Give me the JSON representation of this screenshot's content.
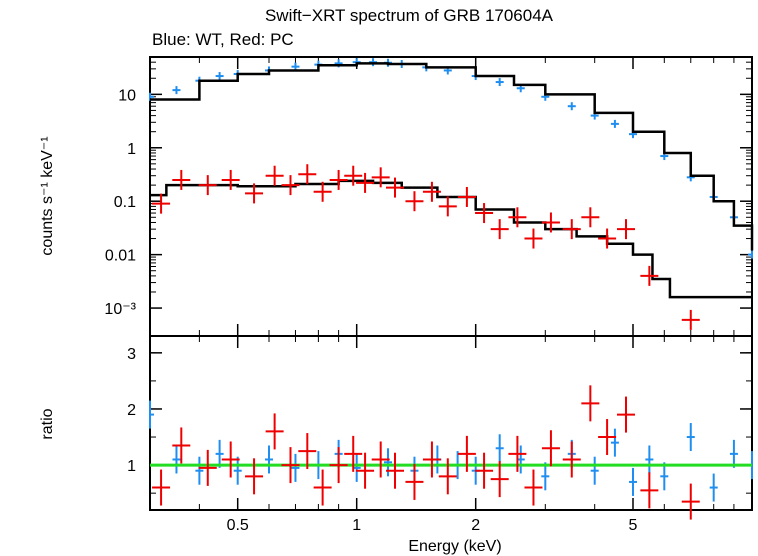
{
  "chart_data": [
    {
      "type": "scatter",
      "title": "Swift−XRT spectrum of GRB 170604A",
      "subtitle": "Blue: WT, Red: PC",
      "xlabel": "",
      "ylabel": "counts s⁻¹ keV⁻¹",
      "xscale": "log",
      "yscale": "log",
      "xlim": [
        0.3,
        10
      ],
      "ylim": [
        0.0003,
        50
      ],
      "y_tick_labels": [
        "10⁻³",
        "0.01",
        "0.1",
        "1",
        "10"
      ],
      "y_tick_values": [
        0.001,
        0.01,
        0.1,
        1,
        10
      ],
      "colors": {
        "wt": "#1f8ef1",
        "pc": "#ee0000",
        "model": "#000000"
      },
      "series": [
        {
          "name": "WT",
          "x": [
            0.3,
            0.35,
            0.4,
            0.45,
            0.5,
            0.6,
            0.7,
            0.8,
            0.9,
            1.0,
            1.1,
            1.2,
            1.3,
            1.5,
            1.7,
            2.0,
            2.3,
            2.6,
            3.0,
            3.5,
            4.0,
            4.5,
            5.0,
            6.0,
            7.0,
            8.0,
            9.0,
            10.0
          ],
          "y": [
            9.0,
            12.0,
            18.0,
            22.0,
            24.0,
            28.0,
            33.0,
            36.0,
            38.0,
            40.0,
            40.0,
            39.0,
            37.0,
            32.0,
            28.0,
            22.0,
            17.0,
            13.0,
            9.0,
            6.0,
            4.0,
            2.8,
            1.8,
            0.7,
            0.28,
            0.12,
            0.05,
            0.01
          ]
        },
        {
          "name": "PC",
          "x": [
            0.32,
            0.36,
            0.42,
            0.48,
            0.55,
            0.62,
            0.68,
            0.75,
            0.82,
            0.9,
            0.98,
            1.05,
            1.15,
            1.25,
            1.4,
            1.55,
            1.7,
            1.9,
            2.1,
            2.3,
            2.55,
            2.8,
            3.1,
            3.5,
            3.9,
            4.3,
            4.8,
            5.5,
            7.0
          ],
          "y": [
            0.09,
            0.25,
            0.2,
            0.25,
            0.14,
            0.3,
            0.2,
            0.32,
            0.15,
            0.25,
            0.3,
            0.22,
            0.28,
            0.18,
            0.1,
            0.15,
            0.08,
            0.12,
            0.06,
            0.03,
            0.05,
            0.02,
            0.04,
            0.03,
            0.05,
            0.02,
            0.03,
            0.004,
            0.0006
          ]
        },
        {
          "name": "WT model",
          "x": [
            0.3,
            0.4,
            0.5,
            0.6,
            0.8,
            1.0,
            1.2,
            1.5,
            2.0,
            2.5,
            3.0,
            4.0,
            5.0,
            6.0,
            7.0,
            8.0,
            9.0,
            10.0
          ],
          "y": [
            8.0,
            18.0,
            24.0,
            28.0,
            35.0,
            38.0,
            37.0,
            32.0,
            22.0,
            15.0,
            10.0,
            4.5,
            2.0,
            0.8,
            0.3,
            0.1,
            0.035,
            0.012
          ]
        },
        {
          "name": "PC model",
          "x": [
            0.3,
            0.33,
            0.4,
            0.5,
            0.7,
            0.9,
            1.0,
            1.1,
            1.3,
            1.6,
            2.0,
            2.5,
            3.0,
            3.6,
            4.3,
            5.0,
            5.6,
            6.2,
            10.0
          ],
          "y": [
            0.13,
            0.2,
            0.2,
            0.19,
            0.21,
            0.24,
            0.24,
            0.22,
            0.18,
            0.12,
            0.07,
            0.04,
            0.03,
            0.022,
            0.016,
            0.01,
            0.0035,
            0.0016,
            0.0016
          ]
        }
      ]
    },
    {
      "type": "scatter",
      "title": "",
      "xlabel": "Energy (keV)",
      "ylabel": "ratio",
      "xscale": "log",
      "yscale": "linear",
      "xlim": [
        0.3,
        10
      ],
      "ylim": [
        0.2,
        3.3
      ],
      "x_tick_labels": [
        "0.5",
        "1",
        "2",
        "5"
      ],
      "x_tick_values": [
        0.5,
        1,
        2,
        5
      ],
      "y_tick_labels": [
        "1",
        "2",
        "3"
      ],
      "y_tick_values": [
        1,
        2,
        3
      ],
      "reference_line": {
        "y": 1,
        "color": "#22dd22"
      },
      "series": [
        {
          "name": "WT",
          "x": [
            0.3,
            0.35,
            0.4,
            0.45,
            0.5,
            0.6,
            0.7,
            0.8,
            0.9,
            1.0,
            1.2,
            1.4,
            1.6,
            1.8,
            2.0,
            2.3,
            2.6,
            3.0,
            3.5,
            4.0,
            4.5,
            5.0,
            5.5,
            6.0,
            7.0,
            8.0,
            9.0,
            10.0
          ],
          "y": [
            1.9,
            1.1,
            0.9,
            1.2,
            0.9,
            1.1,
            0.95,
            1.0,
            1.2,
            0.95,
            1.05,
            0.9,
            1.1,
            1.0,
            0.9,
            1.3,
            1.1,
            0.8,
            1.2,
            0.9,
            1.4,
            0.7,
            1.1,
            0.8,
            1.5,
            0.6,
            1.2,
            1.0
          ]
        },
        {
          "name": "PC",
          "x": [
            0.32,
            0.36,
            0.42,
            0.48,
            0.55,
            0.62,
            0.68,
            0.75,
            0.82,
            0.9,
            0.98,
            1.05,
            1.15,
            1.25,
            1.4,
            1.55,
            1.7,
            1.9,
            2.1,
            2.3,
            2.55,
            2.8,
            3.1,
            3.5,
            3.9,
            4.3,
            4.8,
            5.5,
            7.0
          ],
          "y": [
            0.6,
            1.35,
            0.95,
            1.1,
            0.8,
            1.6,
            1.0,
            1.25,
            0.6,
            1.0,
            1.2,
            0.9,
            1.1,
            0.9,
            0.7,
            1.1,
            0.8,
            1.2,
            0.9,
            0.75,
            1.2,
            0.6,
            1.3,
            1.1,
            2.1,
            1.5,
            1.9,
            0.55,
            0.35
          ]
        }
      ]
    }
  ]
}
